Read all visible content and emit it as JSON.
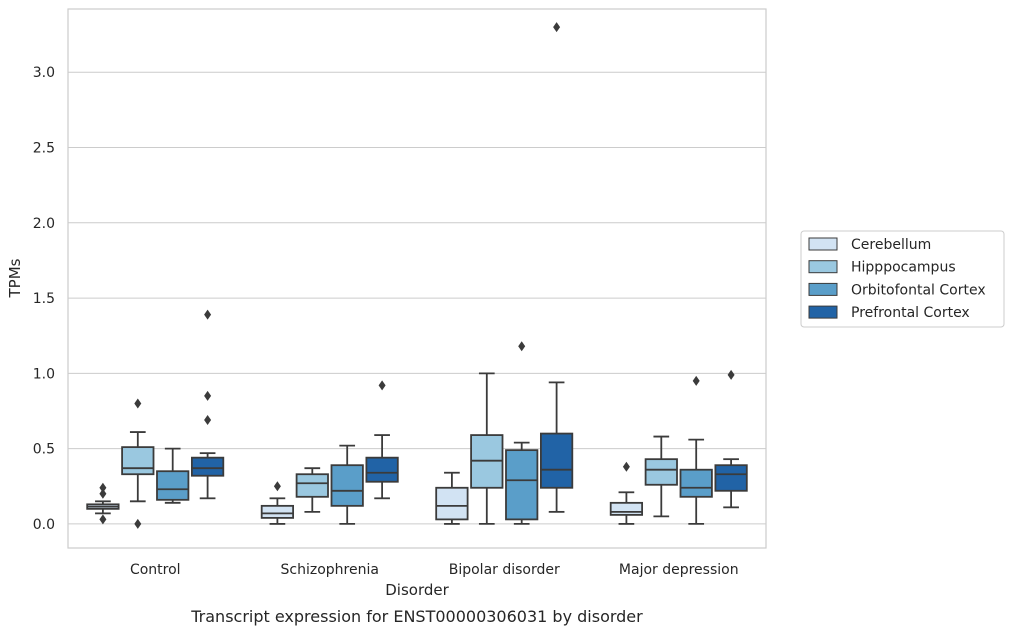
{
  "caption": "Transcript expression for ENST00000306031 by disorder",
  "chart_data": {
    "type": "box",
    "title": "",
    "xlabel": "Disorder",
    "ylabel": "TPMs",
    "ylim": [
      -0.16,
      3.42
    ],
    "yticks": [
      "0.0",
      "0.5",
      "1.0",
      "1.5",
      "2.0",
      "2.5",
      "3.0"
    ],
    "grid": "horizontal",
    "legend_position": "right",
    "categories": [
      "Control",
      "Schizophrenia",
      "Bipolar disorder",
      "Major depression"
    ],
    "series": [
      {
        "name": "Cerebellum",
        "color": "#d2e3f3",
        "boxes": [
          {
            "whislo": 0.07,
            "q1": 0.1,
            "med": 0.115,
            "q3": 0.13,
            "whishi": 0.15,
            "fliers": [
              0.24,
              0.2,
              0.03
            ]
          },
          {
            "whislo": 0.0,
            "q1": 0.04,
            "med": 0.07,
            "q3": 0.12,
            "whishi": 0.17,
            "fliers": [
              0.25
            ]
          },
          {
            "whislo": 0.0,
            "q1": 0.03,
            "med": 0.12,
            "q3": 0.24,
            "whishi": 0.34,
            "fliers": []
          },
          {
            "whislo": 0.0,
            "q1": 0.06,
            "med": 0.08,
            "q3": 0.14,
            "whishi": 0.21,
            "fliers": [
              0.38
            ]
          }
        ]
      },
      {
        "name": "Hipppocampus",
        "color": "#9ac8e0",
        "boxes": [
          {
            "whislo": 0.15,
            "q1": 0.33,
            "med": 0.37,
            "q3": 0.51,
            "whishi": 0.61,
            "fliers": [
              0.8,
              0.0
            ]
          },
          {
            "whislo": 0.08,
            "q1": 0.18,
            "med": 0.27,
            "q3": 0.33,
            "whishi": 0.37,
            "fliers": []
          },
          {
            "whislo": 0.0,
            "q1": 0.24,
            "med": 0.42,
            "q3": 0.59,
            "whishi": 1.0,
            "fliers": []
          },
          {
            "whislo": 0.05,
            "q1": 0.26,
            "med": 0.36,
            "q3": 0.43,
            "whishi": 0.58,
            "fliers": []
          }
        ]
      },
      {
        "name": "Orbitofontal Cortex",
        "color": "#5a9ec9",
        "boxes": [
          {
            "whislo": 0.14,
            "q1": 0.16,
            "med": 0.23,
            "q3": 0.35,
            "whishi": 0.5,
            "fliers": []
          },
          {
            "whislo": 0.0,
            "q1": 0.12,
            "med": 0.22,
            "q3": 0.39,
            "whishi": 0.52,
            "fliers": []
          },
          {
            "whislo": 0.0,
            "q1": 0.03,
            "med": 0.29,
            "q3": 0.49,
            "whishi": 0.54,
            "fliers": [
              1.18
            ]
          },
          {
            "whislo": 0.0,
            "q1": 0.18,
            "med": 0.24,
            "q3": 0.36,
            "whishi": 0.56,
            "fliers": [
              0.95
            ]
          }
        ]
      },
      {
        "name": "Prefrontal Cortex",
        "color": "#2163a6",
        "boxes": [
          {
            "whislo": 0.17,
            "q1": 0.32,
            "med": 0.37,
            "q3": 0.44,
            "whishi": 0.47,
            "fliers": [
              1.39,
              0.85,
              0.69
            ]
          },
          {
            "whislo": 0.17,
            "q1": 0.28,
            "med": 0.34,
            "q3": 0.44,
            "whishi": 0.59,
            "fliers": [
              0.92
            ]
          },
          {
            "whislo": 0.08,
            "q1": 0.24,
            "med": 0.36,
            "q3": 0.6,
            "whishi": 0.94,
            "fliers": [
              3.3
            ]
          },
          {
            "whislo": 0.11,
            "q1": 0.22,
            "med": 0.33,
            "q3": 0.39,
            "whishi": 0.43,
            "fliers": [
              0.99
            ]
          }
        ]
      }
    ]
  }
}
